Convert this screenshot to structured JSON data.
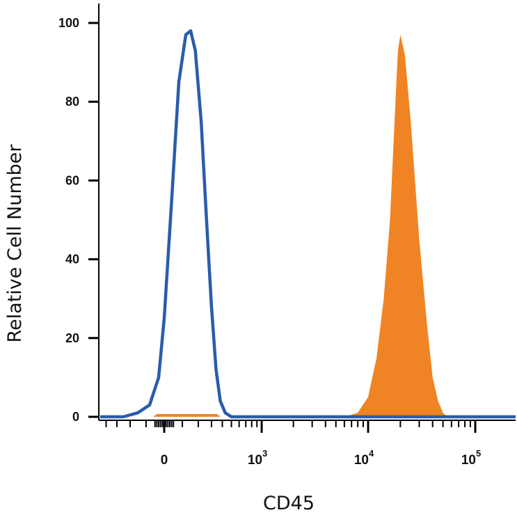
{
  "chart_data": {
    "type": "area",
    "xlabel": "CD45",
    "ylabel": "Relative Cell Number",
    "ylim": [
      0,
      100
    ],
    "y_ticks": [
      "0",
      "20",
      "40",
      "60",
      "80",
      "100"
    ],
    "x_scale": "biexponential",
    "x_ticks": [
      {
        "base": "0",
        "exp": ""
      },
      {
        "base": "10",
        "exp": "3"
      },
      {
        "base": "10",
        "exp": "4"
      },
      {
        "base": "10",
        "exp": "5"
      }
    ],
    "series": [
      {
        "style": "outline",
        "color": "#2a5caa",
        "x": [
          -400,
          -250,
          -150,
          -80,
          -30,
          0,
          40,
          80,
          120,
          150,
          180,
          220,
          260,
          300,
          340,
          380,
          430,
          500,
          600
        ],
        "y": [
          0,
          0,
          1,
          3,
          10,
          25,
          55,
          85,
          97,
          98,
          93,
          75,
          50,
          28,
          12,
          4,
          1,
          0,
          0
        ]
      },
      {
        "style": "filled",
        "color": "#f08324",
        "x": [
          6000,
          8000,
          10000,
          12000,
          14000,
          16000,
          18000,
          19000,
          20000,
          22000,
          25000,
          30000,
          35000,
          40000,
          45000,
          50000,
          55000
        ],
        "y": [
          0,
          1,
          5,
          15,
          30,
          50,
          80,
          93,
          97,
          92,
          75,
          45,
          25,
          10,
          4,
          1,
          0
        ]
      }
    ],
    "colors": {
      "outline": "#2a5caa",
      "filled": "#f08324",
      "axis": "#000000"
    }
  }
}
